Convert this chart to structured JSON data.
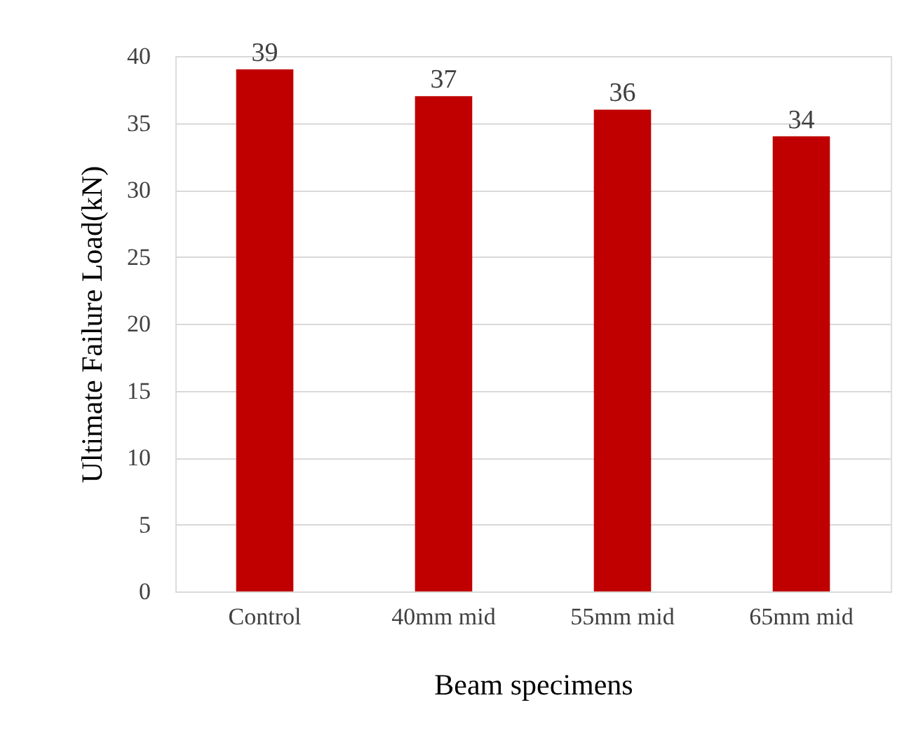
{
  "chart_data": {
    "type": "bar",
    "xlabel": "Beam specimens",
    "ylabel": "Ultimate Failure Load(kN)",
    "categories": [
      "Control",
      "40mm mid",
      "55mm mid",
      "65mm mid"
    ],
    "values": [
      39,
      37,
      36,
      34
    ],
    "color": "#c00000",
    "ylim": [
      0,
      40
    ],
    "yticks": [
      0,
      5,
      10,
      15,
      20,
      25,
      30,
      35,
      40
    ],
    "grid": "y",
    "data_labels": true
  }
}
